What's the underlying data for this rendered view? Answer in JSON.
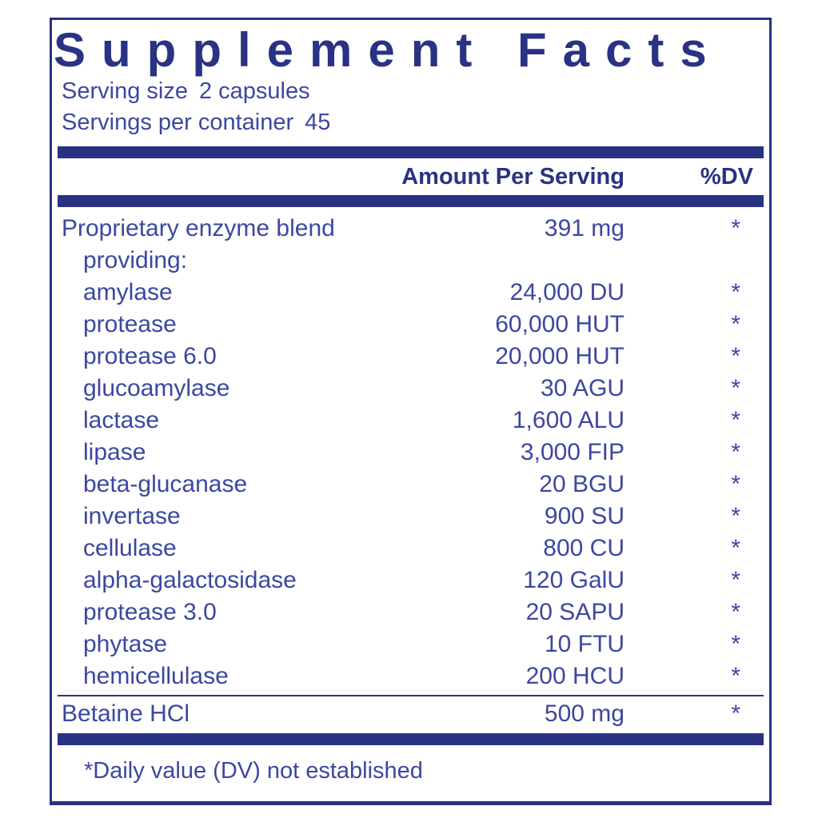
{
  "panel": {
    "title": "Supplement Facts",
    "serving_size_label": "Serving size",
    "serving_size_value": "2 capsules",
    "servings_per_container_label": "Servings per container",
    "servings_per_container_value": "45",
    "columns": {
      "amount_header": "Amount Per Serving",
      "dv_header": "%DV"
    },
    "rows": [
      {
        "name": "Proprietary enzyme blend",
        "amount": "391 mg",
        "dv": "*",
        "indent": false
      },
      {
        "name": "providing:",
        "amount": "",
        "dv": "",
        "indent": true
      },
      {
        "name": "amylase",
        "amount": "24,000 DU",
        "dv": "*",
        "indent": true
      },
      {
        "name": "protease",
        "amount": "60,000 HUT",
        "dv": "*",
        "indent": true
      },
      {
        "name": "protease 6.0",
        "amount": "20,000 HUT",
        "dv": "*",
        "indent": true
      },
      {
        "name": "glucoamylase",
        "amount": "30 AGU",
        "dv": "*",
        "indent": true
      },
      {
        "name": "lactase",
        "amount": "1,600 ALU",
        "dv": "*",
        "indent": true
      },
      {
        "name": "lipase",
        "amount": "3,000 FIP",
        "dv": "*",
        "indent": true
      },
      {
        "name": "beta-glucanase",
        "amount": "20 BGU",
        "dv": "*",
        "indent": true
      },
      {
        "name": "invertase",
        "amount": "900 SU",
        "dv": "*",
        "indent": true
      },
      {
        "name": "cellulase",
        "amount": "800 CU",
        "dv": "*",
        "indent": true
      },
      {
        "name": "alpha-galactosidase",
        "amount": "120 GalU",
        "dv": "*",
        "indent": true
      },
      {
        "name": "protease 3.0",
        "amount": "20 SAPU",
        "dv": "*",
        "indent": true
      },
      {
        "name": "phytase",
        "amount": "10 FTU",
        "dv": "*",
        "indent": true
      },
      {
        "name": "hemicellulase",
        "amount": "200 HCU",
        "dv": "*",
        "indent": true
      }
    ],
    "betaine_row": {
      "name": "Betaine HCl",
      "amount": "500 mg",
      "dv": "*"
    },
    "footnote": "*Daily value (DV) not established",
    "colors": {
      "navy": "#2a3283",
      "text": "#3c47a0"
    }
  }
}
